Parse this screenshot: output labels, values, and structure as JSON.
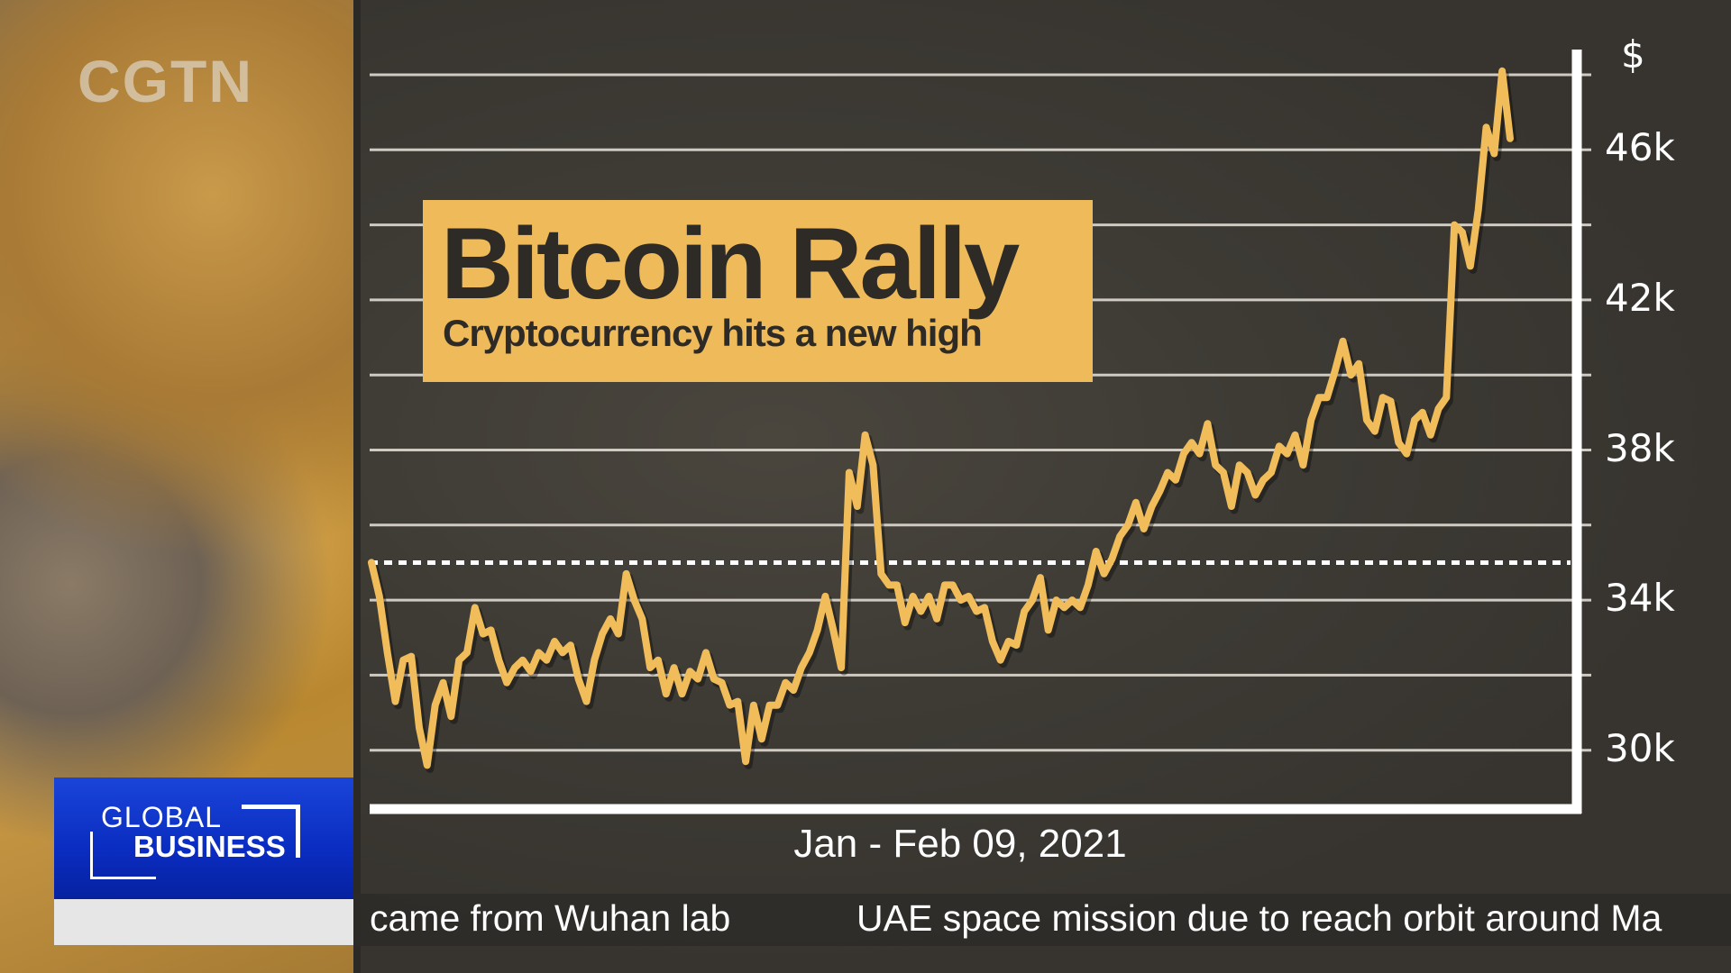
{
  "logo": "CGTN",
  "show": {
    "line1": "GLOBAL",
    "line2": "BUSINESS"
  },
  "ticker": {
    "items": [
      "came from Wuhan lab",
      "UAE space mission due to reach orbit around Ma"
    ]
  },
  "colors": {
    "line": "#f0bd5a",
    "title_box": "#efbb5a",
    "show_box": "#0a2cc0"
  },
  "chart_data": {
    "type": "line",
    "title": "Bitcoin Rally",
    "subtitle": "Cryptocurrency hits a new high",
    "xlabel": "Jan - Feb 09, 2021",
    "ylabel": "$",
    "yticks": [
      "30k",
      "34k",
      "38k",
      "42k",
      "46k"
    ],
    "ytick_values": [
      30000,
      34000,
      38000,
      42000,
      46000
    ],
    "gridlines": [
      30000,
      32000,
      34000,
      36000,
      38000,
      40000,
      42000,
      44000,
      46000,
      48000
    ],
    "ylim": [
      28400,
      48700
    ],
    "grid": true,
    "y_axis_side": "right",
    "reference_line": {
      "value": 35000,
      "style": "dotted"
    },
    "values": [
      35000,
      34100,
      32600,
      31300,
      32400,
      32500,
      30600,
      29600,
      31200,
      31800,
      30900,
      32400,
      32600,
      33800,
      33100,
      33200,
      32400,
      31800,
      32200,
      32400,
      32100,
      32600,
      32400,
      32900,
      32600,
      32800,
      31900,
      31300,
      32400,
      33100,
      33500,
      33100,
      34700,
      34000,
      33500,
      32200,
      32400,
      31500,
      32200,
      31500,
      32100,
      31900,
      32600,
      31900,
      31800,
      31200,
      31300,
      29700,
      31200,
      30300,
      31200,
      31200,
      31800,
      31600,
      32200,
      32600,
      33200,
      34100,
      33200,
      32200,
      37400,
      36500,
      38400,
      37600,
      34700,
      34400,
      34400,
      33400,
      34100,
      33700,
      34100,
      33500,
      34400,
      34400,
      34000,
      34100,
      33700,
      33800,
      32900,
      32400,
      32900,
      32800,
      33700,
      34000,
      34600,
      33200,
      34000,
      33800,
      34000,
      33800,
      34400,
      35300,
      34700,
      35100,
      35700,
      36000,
      36600,
      35900,
      36500,
      36900,
      37400,
      37200,
      37900,
      38200,
      37900,
      38700,
      37600,
      37400,
      36500,
      37600,
      37400,
      36800,
      37200,
      37400,
      38100,
      37900,
      38400,
      37600,
      38800,
      39400,
      39400,
      40100,
      40900,
      40000,
      40300,
      38800,
      38500,
      39400,
      39300,
      38200,
      37900,
      38800,
      39000,
      38400,
      39100,
      39400,
      44000,
      43800,
      42900,
      44400,
      46600,
      45900,
      48100,
      46300
    ]
  }
}
